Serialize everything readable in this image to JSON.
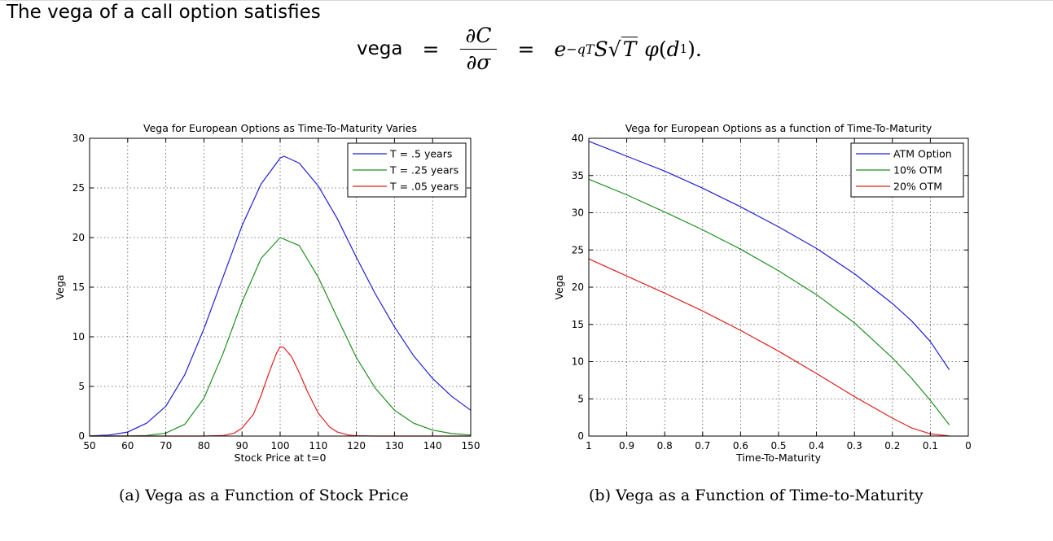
{
  "header": {
    "intro_text": "The vega of a call option satisfies",
    "formula": {
      "lhs": "vega",
      "eq": "=",
      "numerator_d": "∂",
      "numerator_var": "C",
      "denominator_d": "∂",
      "denominator_var": "σ",
      "rhs_e": "e",
      "rhs_exponent": "−qT",
      "rhs_S": "S",
      "rhs_sqrt_arg": "T",
      "rhs_phi": "φ",
      "rhs_d": "d",
      "rhs_sub": "1",
      "rhs_close": ")."
    }
  },
  "captions": {
    "left": "(a) Vega as a Function of Stock Price",
    "right": "(b) Vega as a Function of Time-to-Maturity"
  },
  "colors": {
    "blue": "#1f1fd6",
    "green": "#1f8f1f",
    "red": "#e01f1f"
  },
  "chart_data": [
    {
      "type": "line",
      "title": "Vega for European Options as Time-To-Maturity Varies",
      "xlabel": "Stock Price at t=0",
      "ylabel": "Vega",
      "xlim": [
        50,
        150
      ],
      "ylim": [
        0,
        30
      ],
      "xticks": [
        50,
        60,
        70,
        80,
        90,
        100,
        110,
        120,
        130,
        140,
        150
      ],
      "yticks": [
        0,
        5,
        10,
        15,
        20,
        25,
        30
      ],
      "grid": true,
      "legend_position": "top-right",
      "series": [
        {
          "name": "T = .5 years",
          "color": "#1f1fd6",
          "x": [
            50,
            55,
            60,
            65,
            70,
            75,
            80,
            85,
            90,
            95,
            100,
            101,
            105,
            110,
            115,
            120,
            125,
            130,
            135,
            140,
            145,
            150
          ],
          "y": [
            0.02,
            0.1,
            0.4,
            1.3,
            3.0,
            6.2,
            10.8,
            16.0,
            21.2,
            25.4,
            28.0,
            28.2,
            27.5,
            25.2,
            21.9,
            18.0,
            14.3,
            11.0,
            8.1,
            5.8,
            4.0,
            2.6
          ]
        },
        {
          "name": "T = .25 years",
          "color": "#1f8f1f",
          "x": [
            50,
            60,
            65,
            70,
            75,
            80,
            85,
            90,
            95,
            100,
            105,
            110,
            115,
            120,
            125,
            130,
            135,
            140,
            145,
            150
          ],
          "y": [
            0,
            0.01,
            0.05,
            0.3,
            1.2,
            3.8,
            8.3,
            13.5,
            17.9,
            20.0,
            19.2,
            16.0,
            11.9,
            7.9,
            4.8,
            2.6,
            1.3,
            0.6,
            0.25,
            0.1
          ]
        },
        {
          "name": "T = .05 years",
          "color": "#e01f1f",
          "x": [
            50,
            80,
            85,
            88,
            90,
            93,
            95,
            97,
            99,
            100,
            101,
            103,
            105,
            107,
            110,
            113,
            115,
            118,
            120,
            125,
            150
          ],
          "y": [
            0,
            0,
            0.05,
            0.3,
            0.8,
            2.2,
            4.1,
            6.3,
            8.3,
            9.0,
            8.9,
            8.0,
            6.4,
            4.6,
            2.3,
            0.9,
            0.4,
            0.1,
            0.03,
            0,
            0
          ]
        }
      ]
    },
    {
      "type": "line",
      "title": "Vega for European Options as a function of Time-To-Maturity",
      "xlabel": "Time-To-Maturity",
      "ylabel": "Vega",
      "xlim": [
        1,
        0
      ],
      "x_reversed": true,
      "ylim": [
        0,
        40
      ],
      "xticks": [
        1,
        0.9,
        0.8,
        0.7,
        0.6,
        0.5,
        0.4,
        0.3,
        0.2,
        0.1,
        0
      ],
      "yticks": [
        0,
        5,
        10,
        15,
        20,
        25,
        30,
        35,
        40
      ],
      "grid": true,
      "legend_position": "top-right",
      "series": [
        {
          "name": "ATM Option",
          "color": "#1f1fd6",
          "x": [
            1,
            0.9,
            0.8,
            0.7,
            0.6,
            0.5,
            0.4,
            0.3,
            0.2,
            0.15,
            0.1,
            0.05
          ],
          "y": [
            39.6,
            37.6,
            35.6,
            33.3,
            30.8,
            28.1,
            25.2,
            21.8,
            17.8,
            15.5,
            12.7,
            8.9
          ]
        },
        {
          "name": "10% OTM",
          "color": "#1f8f1f",
          "x": [
            1,
            0.9,
            0.8,
            0.7,
            0.6,
            0.5,
            0.4,
            0.3,
            0.2,
            0.15,
            0.1,
            0.05
          ],
          "y": [
            34.5,
            32.4,
            30.1,
            27.7,
            25.1,
            22.2,
            19.0,
            15.2,
            10.5,
            7.8,
            4.8,
            1.5
          ]
        },
        {
          "name": "20% OTM",
          "color": "#e01f1f",
          "x": [
            1,
            0.9,
            0.8,
            0.7,
            0.6,
            0.5,
            0.4,
            0.3,
            0.2,
            0.15,
            0.1,
            0.05
          ],
          "y": [
            23.8,
            21.5,
            19.2,
            16.8,
            14.2,
            11.4,
            8.4,
            5.3,
            2.4,
            1.1,
            0.3,
            0.02
          ]
        }
      ]
    }
  ]
}
